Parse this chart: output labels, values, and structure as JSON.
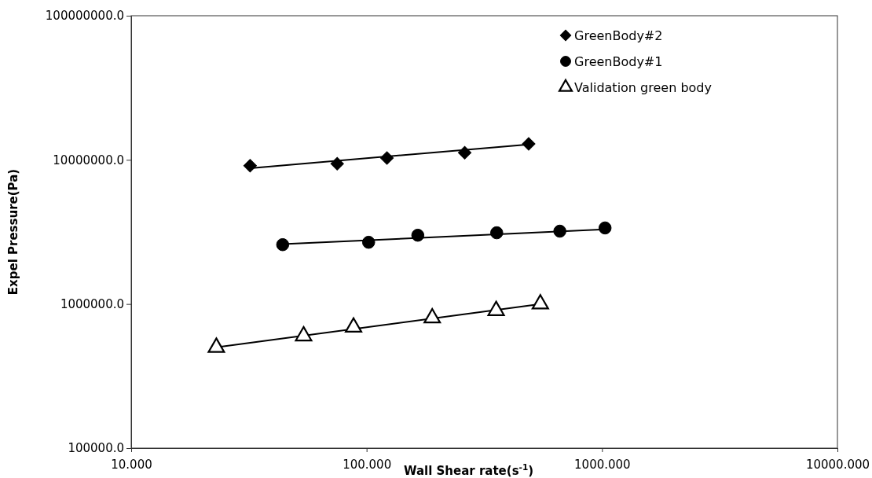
{
  "chart_data": {
    "type": "scatter",
    "xlabel": "Wall Shear rate(s$^{-1}$)",
    "ylabel": "Expel Pressure(Pa)",
    "log": "xy",
    "legend": "top right",
    "grid": false,
    "xlim": [
      10,
      10000
    ],
    "xticks": [
      {
        "value": 10,
        "label": "10.000"
      },
      {
        "value": 100,
        "label": "100.000"
      },
      {
        "value": 1000,
        "label": "1000.000"
      },
      {
        "value": 10000,
        "label": "10000.000"
      }
    ],
    "ylim": [
      100000,
      100000000
    ],
    "yticks": [
      {
        "value": 100000,
        "label": "100000.0"
      },
      {
        "value": 1000000,
        "label": "1000000.0"
      },
      {
        "value": 10000000,
        "label": "10000000.0"
      },
      {
        "value": 100000000,
        "label": "100000000.0"
      }
    ],
    "series": [
      {
        "name": "GreenBody#2",
        "marker": "diamond",
        "color": "#000000",
        "x": [
          32,
          75,
          122,
          261,
          488
        ],
        "values": [
          9100000,
          9400000,
          10300000,
          11200000,
          12900000
        ]
      },
      {
        "name": "GreenBody#1",
        "marker": "circle",
        "color": "#000000",
        "x": [
          44,
          102,
          165,
          357,
          662,
          1030
        ],
        "values": [
          2580000,
          2680000,
          3000000,
          3120000,
          3200000,
          3370000
        ]
      },
      {
        "name": "Validation green body",
        "marker": "triangle",
        "color": "#000000",
        "x": [
          23,
          54,
          88,
          190,
          355,
          547
        ],
        "values": [
          500000,
          600000,
          690000,
          800000,
          900000,
          1000000
        ]
      },
      {
        "type": "line",
        "color": "#000000",
        "marker": "none",
        "x": [
          32,
          488
        ],
        "values": [
          8750000,
          12800000
        ]
      },
      {
        "type": "line",
        "color": "#000000",
        "marker": "none",
        "x": [
          44,
          1030
        ],
        "values": [
          2600000,
          3300000
        ]
      },
      {
        "type": "line",
        "color": "#000000",
        "marker": "none",
        "x": [
          23,
          547
        ],
        "values": [
          500000,
          1000000
        ]
      }
    ]
  }
}
